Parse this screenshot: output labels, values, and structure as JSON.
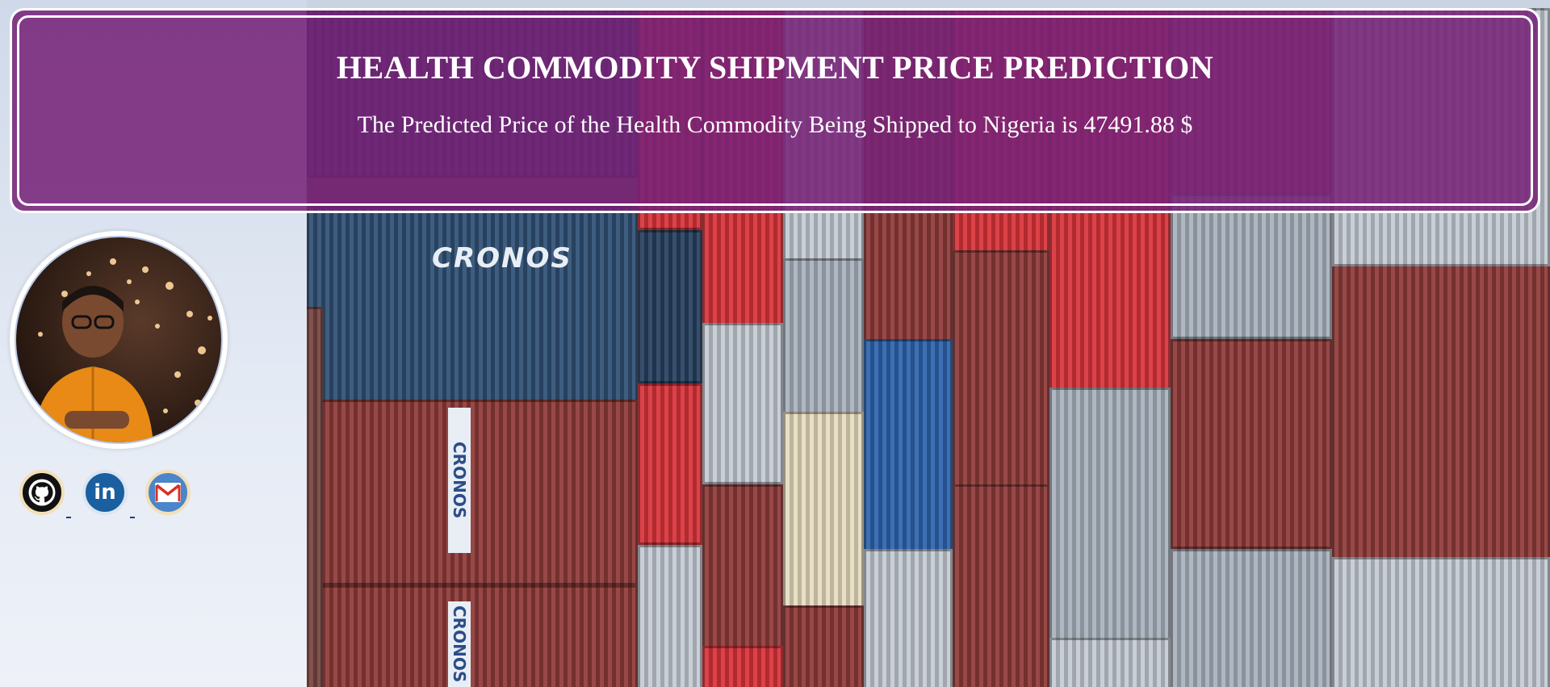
{
  "header": {
    "title": "HEALTH COMMODITY SHIPMENT PRICE PREDICTION",
    "prediction_text": "The Predicted Price of the Health Commodity Being Shipped to Nigeria is 47491.88 $"
  },
  "background": {
    "brand_text": "CRONOS",
    "vertical_label": "CRONOS"
  },
  "profile": {
    "avatar_alt": "profile photo"
  },
  "socials": [
    {
      "name": "github",
      "icon": "github-icon"
    },
    {
      "name": "linkedin",
      "icon": "linkedin-icon",
      "glyph": "in"
    },
    {
      "name": "gmail",
      "icon": "gmail-icon"
    }
  ],
  "colors": {
    "banner": "#762278",
    "border": "#ffffff",
    "sky": "#dfe6f1"
  }
}
